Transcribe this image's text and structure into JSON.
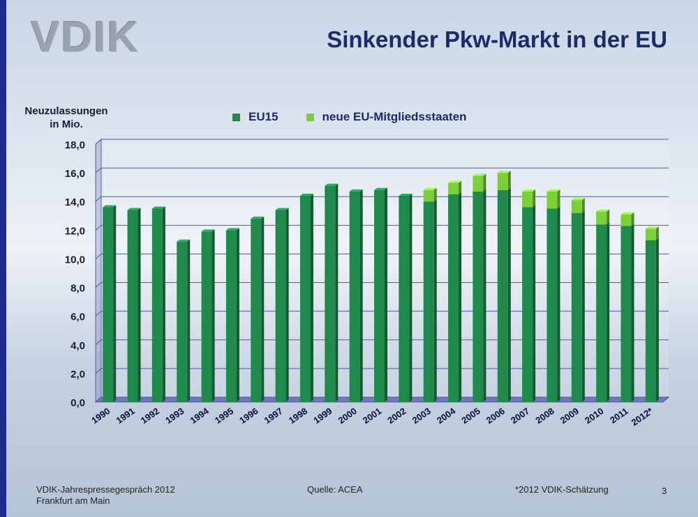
{
  "slide": {
    "logo": "VDIK",
    "title": "Sinkender Pkw-Markt in der EU",
    "ylabel_line1": "Neuzulassungen",
    "ylabel_line2": "in Mio.",
    "footer_left_line1": "VDIK-Jahrespressegespräch 2012",
    "footer_left_line2": "Frankfurt am Main",
    "footer_source": "Quelle: ACEA",
    "footer_note": "*2012 VDIK-Schätzung",
    "page_number": "3"
  },
  "colors": {
    "eu15": "#1f8a4c",
    "new_members": "#7ccf3a",
    "title": "#1c2a6e"
  },
  "chart_data": {
    "type": "bar",
    "stacked": true,
    "categories": [
      "1990",
      "1991",
      "1992",
      "1993",
      "1994",
      "1995",
      "1996",
      "1997",
      "1998",
      "1999",
      "2000",
      "2001",
      "2002",
      "2003",
      "2004",
      "2005",
      "2006",
      "2007",
      "2008",
      "2009",
      "2010",
      "2011",
      "2012*"
    ],
    "series": [
      {
        "name": "EU15",
        "values": [
          13.6,
          13.4,
          13.5,
          11.2,
          11.9,
          12.0,
          12.8,
          13.4,
          14.4,
          15.1,
          14.7,
          14.8,
          14.4,
          14.0,
          14.5,
          14.7,
          14.8,
          13.6,
          13.5,
          13.2,
          12.4,
          12.3,
          11.3
        ]
      },
      {
        "name": "neue EU-Mitgliedsstaaten",
        "values": [
          0,
          0,
          0,
          0,
          0,
          0,
          0,
          0,
          0,
          0,
          0,
          0,
          0,
          0.8,
          0.8,
          1.1,
          1.2,
          1.1,
          1.2,
          0.9,
          0.9,
          0.8,
          0.8
        ]
      }
    ],
    "yticks": [
      "0,0",
      "2,0",
      "4,0",
      "6,0",
      "8,0",
      "10,0",
      "12,0",
      "14,0",
      "16,0",
      "18,0"
    ],
    "ylim": [
      0,
      18
    ],
    "grid": true,
    "legend_position": "top"
  }
}
